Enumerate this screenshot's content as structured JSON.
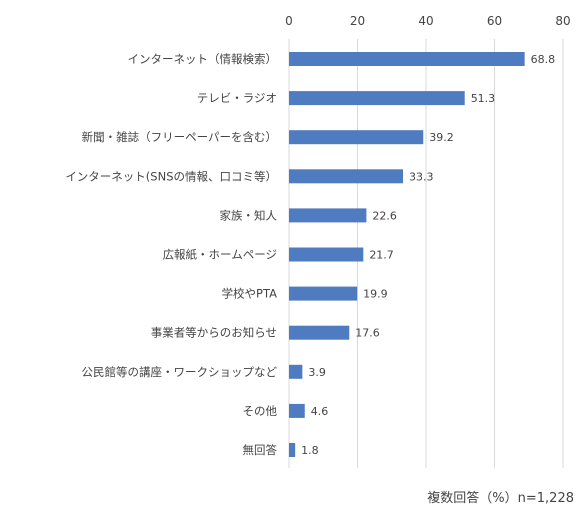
{
  "chart_data": {
    "type": "bar",
    "orientation": "horizontal",
    "categories": [
      "インターネット（情報検索）",
      "テレビ・ラジオ",
      "新聞・雑誌（フリーペーパーを含む）",
      "インターネット(SNSの情報、口コミ等）",
      "家族・知人",
      "広報紙・ホームページ",
      "学校やPTA",
      "事業者等からのお知らせ",
      "公民館等の講座・ワークショップなど",
      "その他",
      "無回答"
    ],
    "values": [
      68.8,
      51.3,
      39.2,
      33.3,
      22.6,
      21.7,
      19.9,
      17.6,
      3.9,
      4.6,
      1.8
    ],
    "value_labels": [
      "68.8",
      "51.3",
      "39.2",
      "33.3",
      "22.6",
      "21.7",
      "19.9",
      "17.6",
      "3.9",
      "4.6",
      "1.8"
    ],
    "xlim": [
      0,
      80
    ],
    "xticks": [
      0,
      20,
      40,
      60,
      80
    ],
    "tick_labels": [
      "0",
      "20",
      "40",
      "60",
      "80"
    ],
    "axis_position": "top",
    "grid": "vertical",
    "legend": "none",
    "note": "複数回答（%）n=1,228",
    "colors": {
      "bar": "#4F7BC0",
      "grid": "#D9D9D9",
      "text": "#444444"
    }
  }
}
